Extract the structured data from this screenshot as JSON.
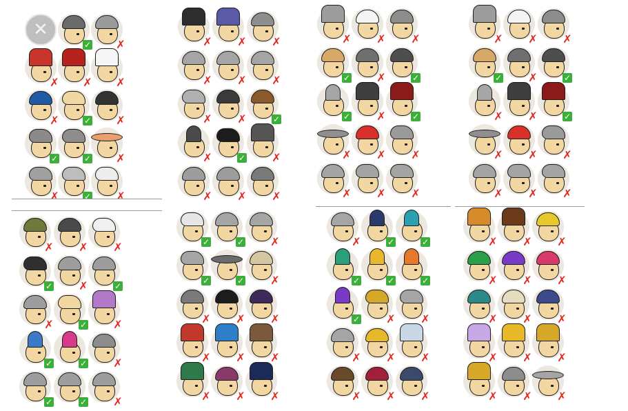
{
  "remove_button": {
    "icon": "close-icon",
    "glyph": "✕"
  },
  "status_icons": {
    "owned": "✓",
    "not_owned": "✗"
  },
  "panels": [
    {
      "name": "panel-1",
      "items": [
        {
          "icon": "remove-hat-button",
          "color": "#000000",
          "shape": "none",
          "status": "remove"
        },
        {
          "icon": "bowler-hat-icon",
          "color": "#6b6b6b",
          "shape": "h-round",
          "status": "owned"
        },
        {
          "icon": "beanie-hat-icon",
          "color": "#9b9b9b",
          "shape": "h-round",
          "status": "not_owned"
        },
        {
          "icon": "crown-hat-icon",
          "color": "#c9342b",
          "shape": "h-tall",
          "status": "not_owned"
        },
        {
          "icon": "flower-turban-icon",
          "color": "#b8221e",
          "shape": "h-tall",
          "status": "not_owned"
        },
        {
          "icon": "chef-hat-icon",
          "color": "#f6f6f6",
          "shape": "h-tall",
          "status": "not_owned"
        },
        {
          "icon": "blue-turban-icon",
          "color": "#1f5aa6",
          "shape": "h-round",
          "status": "not_owned"
        },
        {
          "icon": "hair-bow-icon",
          "color": "#f3d7a3",
          "shape": "h-cap",
          "status": "owned"
        },
        {
          "icon": "spiked-helmet-icon",
          "color": "#333333",
          "shape": "h-round",
          "status": "not_owned"
        },
        {
          "icon": "bandana-icon",
          "color": "#8a8a8a",
          "shape": "h-cap",
          "status": "owned"
        },
        {
          "icon": "flat-cap-icon",
          "color": "#8d8d8d",
          "shape": "h-cap",
          "status": "owned"
        },
        {
          "icon": "sombrero-icon",
          "color": "#e8a070",
          "shape": "h-wide",
          "status": "not_owned"
        },
        {
          "icon": "wrap-hat-icon",
          "color": "#a0a0a0",
          "shape": "h-cap",
          "status": "not_owned"
        },
        {
          "icon": "captain-hat-icon",
          "color": "#bdbdbd",
          "shape": "h-cap",
          "status": "owned"
        },
        {
          "icon": "white-cap-icon",
          "color": "#ededed",
          "shape": "h-cap",
          "status": "not_owned"
        }
      ]
    },
    {
      "name": "panel-2",
      "items": [
        {
          "icon": "top-hat-icon",
          "color": "#2d2d2d",
          "shape": "h-tall",
          "status": "not_owned"
        },
        {
          "icon": "feather-hat-icon",
          "color": "#5a5aa6",
          "shape": "h-tall",
          "status": "not_owned"
        },
        {
          "icon": "knit-hat-icon",
          "color": "#8e8e8e",
          "shape": "h-round",
          "status": "not_owned"
        },
        {
          "icon": "grey-beanie-icon",
          "color": "#a5a5a5",
          "shape": "h-round",
          "status": "not_owned"
        },
        {
          "icon": "grey-cap-icon",
          "color": "#a5a5a5",
          "shape": "h-round",
          "status": "not_owned"
        },
        {
          "icon": "grey-hood-icon",
          "color": "#a5a5a5",
          "shape": "h-round",
          "status": "not_owned"
        },
        {
          "icon": "baseball-cap-icon",
          "color": "#b0b0b0",
          "shape": "h-cap",
          "status": "not_owned"
        },
        {
          "icon": "black-helmet-icon",
          "color": "#3a3a3a",
          "shape": "h-round",
          "status": "not_owned"
        },
        {
          "icon": "brown-fedora-icon",
          "color": "#8a5a2b",
          "shape": "h-round",
          "status": "owned"
        },
        {
          "icon": "witch-hat-icon",
          "color": "#4a4a4a",
          "shape": "h-cone",
          "status": "not_owned"
        },
        {
          "icon": "punk-hair-icon",
          "color": "#1c1c1c",
          "shape": "h-cap",
          "status": "owned"
        },
        {
          "icon": "knight-helmet-icon",
          "color": "#555555",
          "shape": "h-tall",
          "status": "not_owned"
        },
        {
          "icon": "pompom-hat-icon",
          "color": "#9d9d9d",
          "shape": "h-round",
          "status": "not_owned"
        },
        {
          "icon": "pompom-beanie-icon",
          "color": "#9d9d9d",
          "shape": "h-round",
          "status": "not_owned"
        },
        {
          "icon": "goggles-hat-icon",
          "color": "#7a7a7a",
          "shape": "h-round",
          "status": "not_owned"
        }
      ]
    },
    {
      "name": "panel-3",
      "items": [
        {
          "icon": "fur-hat-icon",
          "color": "#9d9d9d",
          "shape": "h-tall",
          "status": "not_owned"
        },
        {
          "icon": "panda-hat-icon",
          "color": "#f5f5f5",
          "shape": "h-round",
          "status": "not_owned"
        },
        {
          "icon": "viking-helmet-icon",
          "color": "#8d8d8d",
          "shape": "h-round",
          "status": "not_owned"
        },
        {
          "icon": "straw-boater-icon",
          "color": "#d8a867",
          "shape": "h-round",
          "status": "owned"
        },
        {
          "icon": "aviator-cap-icon",
          "color": "#6f6f6f",
          "shape": "h-round",
          "status": "not_owned"
        },
        {
          "icon": "dark-bowler-icon",
          "color": "#4e4e4e",
          "shape": "h-round",
          "status": "owned"
        },
        {
          "icon": "jester-hat-icon",
          "color": "#a6a6a6",
          "shape": "h-cone",
          "status": "owned"
        },
        {
          "icon": "bellboy-hat-icon",
          "color": "#3f3f3f",
          "shape": "h-tall",
          "status": "not_owned"
        },
        {
          "icon": "fez-hat-icon",
          "color": "#8b1a1a",
          "shape": "h-tall",
          "status": "owned"
        },
        {
          "icon": "ufo-hat-icon",
          "color": "#8f8f8f",
          "shape": "h-wide",
          "status": "not_owned"
        },
        {
          "icon": "rasta-hat-icon",
          "color": "#d9302a",
          "shape": "h-round",
          "status": "not_owned"
        },
        {
          "icon": "silver-hair-icon",
          "color": "#9a9a9a",
          "shape": "h-cap",
          "status": "not_owned"
        },
        {
          "icon": "grey-beret-icon",
          "color": "#a4a4a4",
          "shape": "h-round",
          "status": "not_owned"
        },
        {
          "icon": "grey-cap-2-icon",
          "color": "#a4a4a4",
          "shape": "h-cap",
          "status": "not_owned"
        },
        {
          "icon": "grey-visor-icon",
          "color": "#a4a4a4",
          "shape": "h-cap",
          "status": "not_owned"
        }
      ]
    },
    {
      "name": "panel-4",
      "items": [
        {
          "icon": "fur-hat-icon",
          "color": "#9d9d9d",
          "shape": "h-tall",
          "status": "not_owned"
        },
        {
          "icon": "panda-hat-icon",
          "color": "#f5f5f5",
          "shape": "h-round",
          "status": "not_owned"
        },
        {
          "icon": "viking-helmet-icon",
          "color": "#8d8d8d",
          "shape": "h-round",
          "status": "not_owned"
        },
        {
          "icon": "straw-boater-icon",
          "color": "#d8a867",
          "shape": "h-round",
          "status": "owned"
        },
        {
          "icon": "aviator-cap-icon",
          "color": "#6f6f6f",
          "shape": "h-round",
          "status": "not_owned"
        },
        {
          "icon": "dark-bowler-icon",
          "color": "#4e4e4e",
          "shape": "h-round",
          "status": "owned"
        },
        {
          "icon": "jester-hat-icon",
          "color": "#a6a6a6",
          "shape": "h-cone",
          "status": "not_owned"
        },
        {
          "icon": "bellboy-hat-icon",
          "color": "#3f3f3f",
          "shape": "h-tall",
          "status": "not_owned"
        },
        {
          "icon": "fez-hat-icon",
          "color": "#8b1a1a",
          "shape": "h-tall",
          "status": "owned"
        },
        {
          "icon": "ufo-hat-icon",
          "color": "#8f8f8f",
          "shape": "h-wide",
          "status": "not_owned"
        },
        {
          "icon": "rasta-hat-icon",
          "color": "#d9302a",
          "shape": "h-round",
          "status": "not_owned"
        },
        {
          "icon": "silver-hair-icon",
          "color": "#9a9a9a",
          "shape": "h-cap",
          "status": "not_owned"
        },
        {
          "icon": "grey-beret-icon",
          "color": "#a4a4a4",
          "shape": "h-round",
          "status": "not_owned"
        },
        {
          "icon": "grey-cap-2-icon",
          "color": "#a4a4a4",
          "shape": "h-cap",
          "status": "not_owned"
        },
        {
          "icon": "grey-visor-icon",
          "color": "#a4a4a4",
          "shape": "h-cap",
          "status": "not_owned"
        }
      ]
    },
    {
      "name": "panel-5",
      "items": [
        {
          "icon": "army-helmet-icon",
          "color": "#6f7a3a",
          "shape": "h-round",
          "status": "not_owned"
        },
        {
          "icon": "dark-helmet-icon",
          "color": "#4a4a4a",
          "shape": "h-round",
          "status": "not_owned"
        },
        {
          "icon": "bandage-hat-icon",
          "color": "#f0f0f0",
          "shape": "h-cap",
          "status": "not_owned"
        },
        {
          "icon": "police-cap-icon",
          "color": "#2f2f2f",
          "shape": "h-cap",
          "status": "owned"
        },
        {
          "icon": "cat-ears-icon",
          "color": "#9d9d9d",
          "shape": "h-round",
          "status": "not_owned"
        },
        {
          "icon": "grey-fedora-icon",
          "color": "#9d9d9d",
          "shape": "h-round",
          "status": "owned"
        },
        {
          "icon": "frog-hat-icon",
          "color": "#9d9d9d",
          "shape": "h-round",
          "status": "not_owned"
        },
        {
          "icon": "hairband-icon",
          "color": "#f3d7a3",
          "shape": "h-cap",
          "status": "owned"
        },
        {
          "icon": "octopus-hat-icon",
          "color": "#b07ac8",
          "shape": "h-tall",
          "status": "not_owned"
        },
        {
          "icon": "party-hat-blue-icon",
          "color": "#3a7ac8",
          "shape": "h-cone",
          "status": "owned"
        },
        {
          "icon": "party-hat-pink-icon",
          "color": "#d83a8a",
          "shape": "h-cone",
          "status": "owned"
        },
        {
          "icon": "grey-hood-icon",
          "color": "#8d8d8d",
          "shape": "h-round",
          "status": "not_owned"
        },
        {
          "icon": "bun-hair-icon",
          "color": "#9d9d9d",
          "shape": "h-round",
          "status": "owned"
        },
        {
          "icon": "grey-beanie-2-icon",
          "color": "#9d9d9d",
          "shape": "h-round",
          "status": "owned"
        },
        {
          "icon": "horned-hat-icon",
          "color": "#9d9d9d",
          "shape": "h-round",
          "status": "not_owned"
        }
      ]
    },
    {
      "name": "panel-6",
      "items": [
        {
          "icon": "sailor-cap-icon",
          "color": "#e6e6e6",
          "shape": "h-cap",
          "status": "owned"
        },
        {
          "icon": "grey-cap-3-icon",
          "color": "#a5a5a5",
          "shape": "h-round",
          "status": "owned"
        },
        {
          "icon": "grey-helmet-icon",
          "color": "#a5a5a5",
          "shape": "h-round",
          "status": "not_owned"
        },
        {
          "icon": "cap-backward-icon",
          "color": "#a5a5a5",
          "shape": "h-cap",
          "status": "owned"
        },
        {
          "icon": "ranger-hat-icon",
          "color": "#6b6b6b",
          "shape": "h-wide",
          "status": "owned"
        },
        {
          "icon": "skull-hat-icon",
          "color": "#d6c7a3",
          "shape": "h-round",
          "status": "not_owned"
        },
        {
          "icon": "dino-hat-icon",
          "color": "#7a7a7a",
          "shape": "h-round",
          "status": "not_owned"
        },
        {
          "icon": "bomb-hat-icon",
          "color": "#1c1c1c",
          "shape": "h-round",
          "status": "not_owned"
        },
        {
          "icon": "purple-hood-icon",
          "color": "#3c2b5a",
          "shape": "h-round",
          "status": "not_owned"
        },
        {
          "icon": "gladiator-helmet-red-icon",
          "color": "#c0392b",
          "shape": "h-tall",
          "status": "not_owned"
        },
        {
          "icon": "gladiator-helmet-blue-icon",
          "color": "#2f7fc8",
          "shape": "h-tall",
          "status": "not_owned"
        },
        {
          "icon": "dreadlock-mask-icon",
          "color": "#7a5a3a",
          "shape": "h-tall",
          "status": "not_owned"
        },
        {
          "icon": "tribal-mask-icon",
          "color": "#2f7a4a",
          "shape": "h-tall",
          "status": "not_owned"
        },
        {
          "icon": "ram-horns-icon",
          "color": "#8a3a6a",
          "shape": "h-round",
          "status": "not_owned"
        },
        {
          "icon": "demon-horns-icon",
          "color": "#1c2a5a",
          "shape": "h-tall",
          "status": "not_owned"
        }
      ]
    },
    {
      "name": "panel-7",
      "items": [
        {
          "icon": "grey-beanie-3-icon",
          "color": "#a5a5a5",
          "shape": "h-round",
          "status": "not_owned"
        },
        {
          "icon": "party-hat-navy-icon",
          "color": "#2a3a6a",
          "shape": "h-cone",
          "status": "owned"
        },
        {
          "icon": "party-hat-teal-icon",
          "color": "#2aa0b0",
          "shape": "h-cone",
          "status": "owned"
        },
        {
          "icon": "party-hat-green-icon",
          "color": "#2aa07a",
          "shape": "h-cone",
          "status": "owned"
        },
        {
          "icon": "party-hat-yellow-icon",
          "color": "#e6b82a",
          "shape": "h-cone",
          "status": "owned"
        },
        {
          "icon": "party-hat-orange-icon",
          "color": "#e6782a",
          "shape": "h-cone",
          "status": "owned"
        },
        {
          "icon": "party-hat-purple-icon",
          "color": "#7a3ac8",
          "shape": "h-cone",
          "status": "owned"
        },
        {
          "icon": "gold-tiara-icon",
          "color": "#d6a82a",
          "shape": "h-cap",
          "status": "not_owned"
        },
        {
          "icon": "grey-cap-4-icon",
          "color": "#a5a5a5",
          "shape": "h-cap",
          "status": "not_owned"
        },
        {
          "icon": "grey-helmet-2-icon",
          "color": "#a5a5a5",
          "shape": "h-round",
          "status": "not_owned"
        },
        {
          "icon": "duck-hat-icon",
          "color": "#e6b82a",
          "shape": "h-round",
          "status": "not_owned"
        },
        {
          "icon": "fishbowl-helmet-icon",
          "color": "#c8d8e6",
          "shape": "h-tall",
          "status": "not_owned"
        },
        {
          "icon": "braided-hair-icon",
          "color": "#6b4a2a",
          "shape": "h-round",
          "status": "not_owned"
        },
        {
          "icon": "magneto-helmet-icon",
          "color": "#a0203a",
          "shape": "h-round",
          "status": "not_owned"
        },
        {
          "icon": "goggle-helmet-icon",
          "color": "#3a4a6a",
          "shape": "h-round",
          "status": "not_owned"
        }
      ]
    },
    {
      "name": "panel-8",
      "items": [
        {
          "icon": "gold-top-hat-icon",
          "color": "#d68a2a",
          "shape": "h-tall",
          "status": "not_owned"
        },
        {
          "icon": "wookie-hair-icon",
          "color": "#6b3a1a",
          "shape": "h-tall",
          "status": "not_owned"
        },
        {
          "icon": "yellow-beanie-icon",
          "color": "#e6c82a",
          "shape": "h-round",
          "status": "not_owned"
        },
        {
          "icon": "green-beanie-icon",
          "color": "#2aa04a",
          "shape": "h-round",
          "status": "not_owned"
        },
        {
          "icon": "purple-beanie-icon",
          "color": "#7a3ac8",
          "shape": "h-round",
          "status": "not_owned"
        },
        {
          "icon": "pink-beanie-icon",
          "color": "#d83a6a",
          "shape": "h-round",
          "status": "not_owned"
        },
        {
          "icon": "teal-beanie-icon",
          "color": "#2a8a8a",
          "shape": "h-round",
          "status": "not_owned"
        },
        {
          "icon": "cream-beanie-icon",
          "color": "#e6dcc0",
          "shape": "h-round",
          "status": "not_owned"
        },
        {
          "icon": "navy-beanie-icon",
          "color": "#3a4a8a",
          "shape": "h-round",
          "status": "not_owned"
        },
        {
          "icon": "unicorn-hat-icon",
          "color": "#c8a8e6",
          "shape": "h-tall",
          "status": "not_owned"
        },
        {
          "icon": "gold-crown-icon",
          "color": "#e6b82a",
          "shape": "h-tall",
          "status": "not_owned"
        },
        {
          "icon": "jeweled-crown-icon",
          "color": "#d6a82a",
          "shape": "h-tall",
          "status": "not_owned"
        },
        {
          "icon": "tribal-crown-icon",
          "color": "#d6a82a",
          "shape": "h-tall",
          "status": "not_owned"
        },
        {
          "icon": "knight-visor-icon",
          "color": "#8d8d8d",
          "shape": "h-round",
          "status": "not_owned"
        },
        {
          "icon": "lady-hat-icon",
          "color": "#a5a5a5",
          "shape": "h-wide",
          "status": "not_owned"
        }
      ]
    }
  ]
}
